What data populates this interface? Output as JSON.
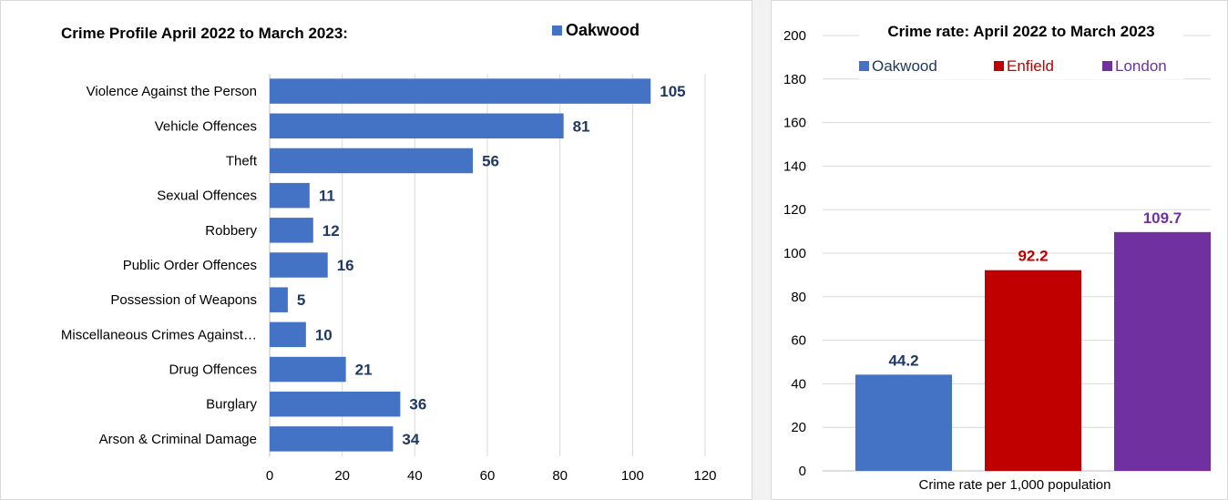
{
  "chart_data": [
    {
      "type": "bar",
      "orientation": "horizontal",
      "title": "Crime Profile April 2022 to March 2023:",
      "legend": "top-right",
      "categories": [
        "Violence Against the Person",
        "Vehicle Offences",
        "Theft",
        "Sexual Offences",
        "Robbery",
        "Public Order Offences",
        "Possession of Weapons",
        "Miscellaneous Crimes Against…",
        "Drug Offences",
        "Burglary",
        "Arson & Criminal Damage"
      ],
      "series": [
        {
          "name": "Oakwood",
          "color": "#4472c4",
          "values": [
            105,
            81,
            56,
            11,
            12,
            16,
            5,
            10,
            21,
            36,
            34
          ]
        }
      ],
      "xlim": [
        0,
        120
      ],
      "xticks": [
        0,
        20,
        40,
        60,
        80,
        100,
        120
      ],
      "grid": true,
      "data_label_color": "#1f3864"
    },
    {
      "type": "bar",
      "orientation": "vertical",
      "title": "Crime rate: April 2022 to March 2023",
      "legend": "top",
      "categories": [
        "Oakwood",
        "Enfield",
        "London"
      ],
      "values": [
        44.2,
        92.2,
        109.7
      ],
      "value_labels": [
        "44.2",
        "92.2",
        "109.7"
      ],
      "colors": [
        "#4472c4",
        "#c00000",
        "#7030a0"
      ],
      "label_colors": [
        "#1f3864",
        "#c00000",
        "#7030a0"
      ],
      "xlabel": "Crime rate per 1,000 population",
      "ylim": [
        0,
        200
      ],
      "yticks": [
        0,
        20,
        40,
        60,
        80,
        100,
        120,
        140,
        160,
        180,
        200
      ],
      "grid": true
    }
  ]
}
